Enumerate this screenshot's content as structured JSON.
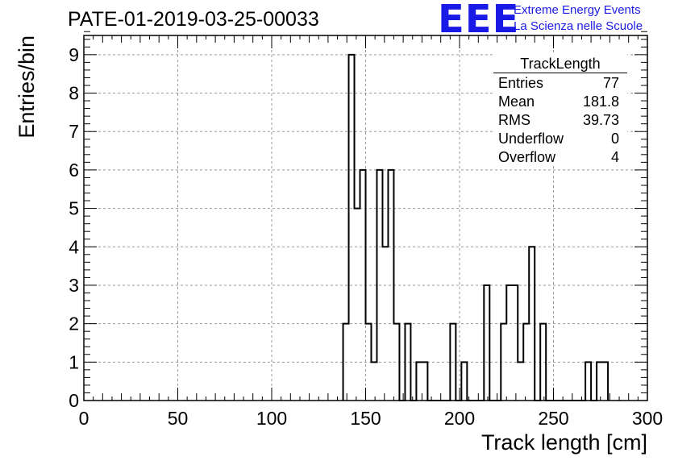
{
  "header": {
    "run_title": "PATE-01-2019-03-25-00033",
    "logo_text": "EEE",
    "logo_line1": "Extreme Energy Events",
    "logo_line2": "La Scienza nelle Scuole",
    "logo_color": "#1a1ae6"
  },
  "stats_box": {
    "title": "TrackLength",
    "rows": [
      {
        "label": "Entries",
        "value": "77"
      },
      {
        "label": "Mean",
        "value": "181.8"
      },
      {
        "label": "RMS",
        "value": "39.73"
      },
      {
        "label": "Underflow",
        "value": "0"
      },
      {
        "label": "Overflow",
        "value": "4"
      }
    ]
  },
  "chart_data": {
    "type": "bar",
    "style": "step-histogram",
    "xlabel": "Track length [cm]",
    "ylabel": "Entries/bin",
    "xlim": [
      0,
      300
    ],
    "ylim": [
      0,
      9.5
    ],
    "bin_width": 3,
    "x_ticks": [
      0,
      50,
      100,
      150,
      200,
      250,
      300
    ],
    "y_ticks": [
      0,
      1,
      2,
      3,
      4,
      5,
      6,
      7,
      8,
      9
    ],
    "grid": true,
    "bins": [
      {
        "x": 138,
        "value": 2
      },
      {
        "x": 141,
        "value": 9
      },
      {
        "x": 144,
        "value": 5
      },
      {
        "x": 147,
        "value": 6
      },
      {
        "x": 150,
        "value": 2
      },
      {
        "x": 153,
        "value": 1
      },
      {
        "x": 156,
        "value": 6
      },
      {
        "x": 159,
        "value": 4
      },
      {
        "x": 162,
        "value": 6
      },
      {
        "x": 165,
        "value": 2
      },
      {
        "x": 168,
        "value": 0
      },
      {
        "x": 171,
        "value": 2
      },
      {
        "x": 174,
        "value": 0
      },
      {
        "x": 177,
        "value": 1
      },
      {
        "x": 180,
        "value": 1
      },
      {
        "x": 195,
        "value": 2
      },
      {
        "x": 198,
        "value": 0
      },
      {
        "x": 201,
        "value": 1
      },
      {
        "x": 213,
        "value": 3
      },
      {
        "x": 222,
        "value": 2
      },
      {
        "x": 225,
        "value": 3
      },
      {
        "x": 228,
        "value": 3
      },
      {
        "x": 231,
        "value": 1
      },
      {
        "x": 234,
        "value": 2
      },
      {
        "x": 237,
        "value": 4
      },
      {
        "x": 240,
        "value": 0
      },
      {
        "x": 243,
        "value": 2
      },
      {
        "x": 267,
        "value": 1
      },
      {
        "x": 273,
        "value": 1
      },
      {
        "x": 276,
        "value": 1
      }
    ]
  }
}
